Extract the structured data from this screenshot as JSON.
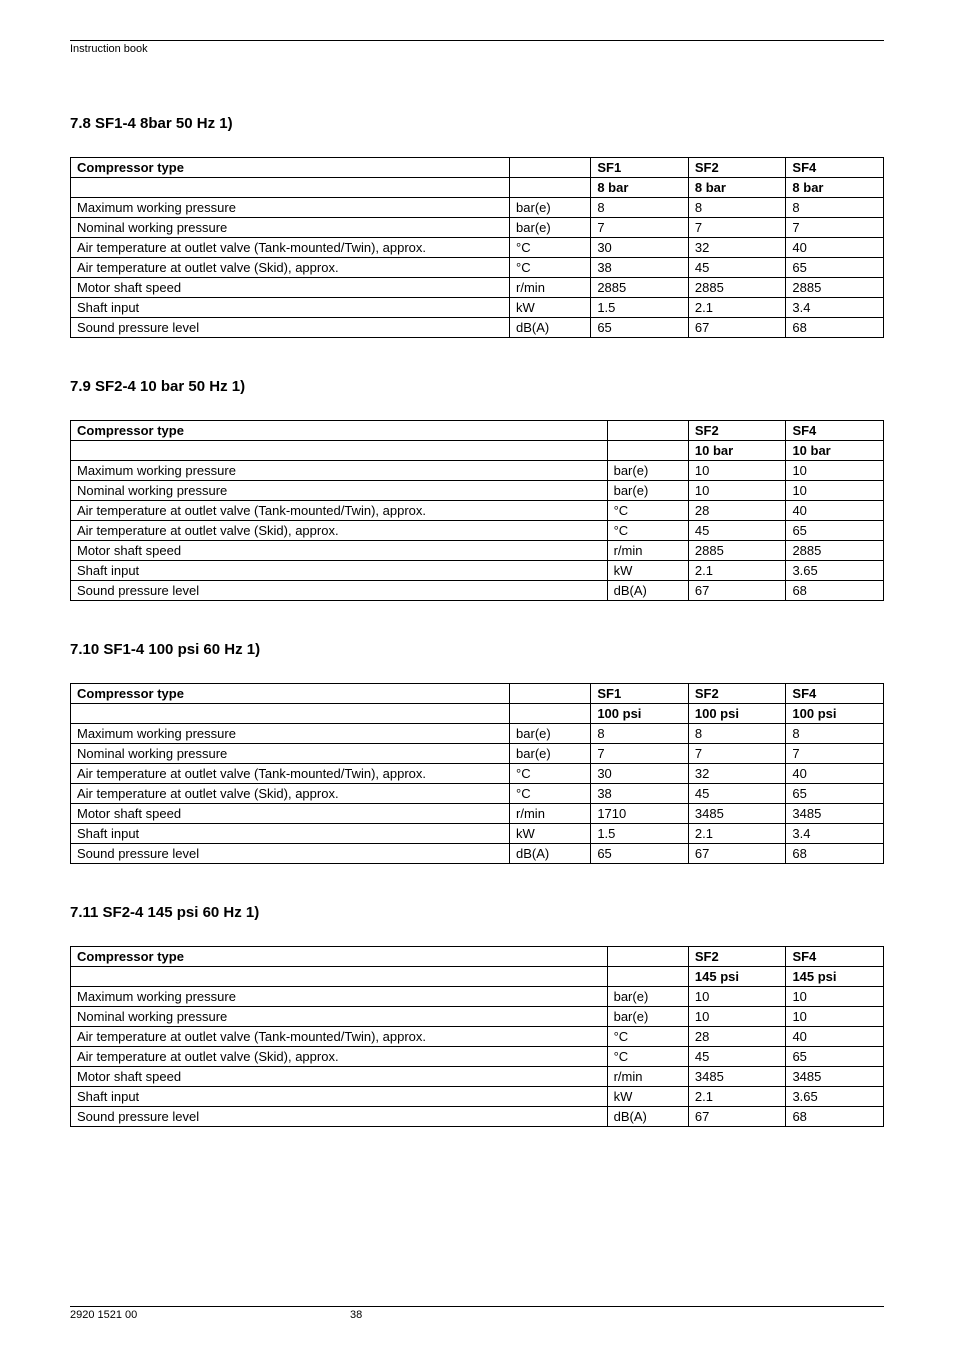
{
  "header": "Instruction book",
  "footer_left": "2920 1521 00",
  "footer_page": "38",
  "sections": [
    {
      "title": "7.8 SF1-4  8bar 50 Hz 1)",
      "header_row": [
        "Compressor type",
        "",
        "SF1",
        "SF2",
        "SF4"
      ],
      "subheader_row": [
        "",
        "",
        "8 bar",
        "8 bar",
        "8 bar"
      ],
      "rows": [
        [
          "Maximum working pressure",
          "bar(e)",
          "8",
          "8",
          "8"
        ],
        [
          "Nominal working pressure",
          "bar(e)",
          "7",
          "7",
          "7"
        ],
        [
          "Air temperature at outlet valve (Tank-mounted/Twin), approx.",
          "°C",
          "30",
          "32",
          "40"
        ],
        [
          "Air temperature at outlet valve (Skid), approx.",
          "°C",
          "38",
          "45",
          "65"
        ],
        [
          "Motor shaft speed",
          "r/min",
          "2885",
          "2885",
          "2885"
        ],
        [
          "Shaft input",
          "kW",
          "1.5",
          "2.1",
          "3.4"
        ],
        [
          "Sound pressure level",
          "dB(A)",
          "65",
          "67",
          "68"
        ]
      ],
      "col_widths": [
        "54%",
        "10%",
        "12%",
        "12%",
        "12%"
      ]
    },
    {
      "title": "7.9 SF2-4  10 bar 50 Hz 1)",
      "header_row": [
        "Compressor type",
        "",
        "SF2",
        "SF4"
      ],
      "subheader_row": [
        "",
        "",
        "10 bar",
        "10 bar"
      ],
      "rows": [
        [
          "Maximum working pressure",
          "bar(e)",
          "10",
          "10"
        ],
        [
          "Nominal working pressure",
          "bar(e)",
          "10",
          "10"
        ],
        [
          "Air temperature at outlet valve (Tank-mounted/Twin), approx.",
          "°C",
          "28",
          "40"
        ],
        [
          "Air temperature at outlet valve (Skid), approx.",
          "°C",
          "45",
          "65"
        ],
        [
          "Motor shaft speed",
          "r/min",
          "2885",
          "2885"
        ],
        [
          "Shaft input",
          "kW",
          "2.1",
          "3.65"
        ],
        [
          "Sound pressure level",
          "dB(A)",
          "67",
          "68"
        ]
      ],
      "col_widths": [
        "66%",
        "10%",
        "12%",
        "12%"
      ]
    },
    {
      "title": "7.10 SF1-4  100 psi 60 Hz 1)",
      "header_row": [
        "Compressor type",
        "",
        "SF1",
        "SF2",
        "SF4"
      ],
      "subheader_row": [
        "",
        "",
        "100 psi",
        "100 psi",
        "100 psi"
      ],
      "rows": [
        [
          "Maximum working pressure",
          "bar(e)",
          "8",
          "8",
          "8"
        ],
        [
          "Nominal working pressure",
          "bar(e)",
          "7",
          "7",
          "7"
        ],
        [
          "Air temperature at outlet valve (Tank-mounted/Twin), approx.",
          "°C",
          "30",
          "32",
          "40"
        ],
        [
          "Air temperature at outlet valve (Skid), approx.",
          "°C",
          "38",
          "45",
          "65"
        ],
        [
          "Motor shaft speed",
          "r/min",
          "1710",
          "3485",
          "3485"
        ],
        [
          "Shaft input",
          "kW",
          "1.5",
          "2.1",
          "3.4"
        ],
        [
          "Sound pressure level",
          "dB(A)",
          "65",
          "67",
          "68"
        ]
      ],
      "col_widths": [
        "54%",
        "10%",
        "12%",
        "12%",
        "12%"
      ]
    },
    {
      "title": "7.11 SF2-4  145 psi 60 Hz 1)",
      "header_row": [
        "Compressor type",
        "",
        "SF2",
        "SF4"
      ],
      "subheader_row": [
        "",
        "",
        "145 psi",
        "145 psi"
      ],
      "rows": [
        [
          "Maximum working pressure",
          "bar(e)",
          "10",
          "10"
        ],
        [
          "Nominal working pressure",
          "bar(e)",
          "10",
          "10"
        ],
        [
          "Air temperature at outlet valve (Tank-mounted/Twin), approx.",
          "°C",
          "28",
          "40"
        ],
        [
          "Air temperature at outlet valve (Skid), approx.",
          "°C",
          "45",
          "65"
        ],
        [
          "Motor shaft speed",
          "r/min",
          "3485",
          "3485"
        ],
        [
          "Shaft input",
          "kW",
          "2.1",
          "3.65"
        ],
        [
          "Sound pressure level",
          "dB(A)",
          "67",
          "68"
        ]
      ],
      "col_widths": [
        "66%",
        "10%",
        "12%",
        "12%"
      ]
    }
  ]
}
